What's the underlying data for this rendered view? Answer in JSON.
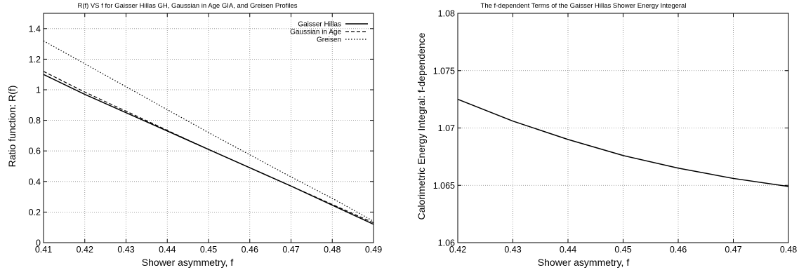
{
  "chart_data": [
    {
      "type": "line",
      "title": "R(f) VS f for Gaisser Hillas GH, Gaussian in Age GIA, and Greisen Profiles",
      "xlabel": "Shower asymmetry, f",
      "ylabel": "Ratio function: R(f)",
      "xlim": [
        0.41,
        0.49
      ],
      "ylim": [
        0,
        1.5
      ],
      "xticks": [
        "0.41",
        "0.42",
        "0.43",
        "0.44",
        "0.45",
        "0.46",
        "0.47",
        "0.48",
        "0.49"
      ],
      "yticks": [
        "0",
        "0.2",
        "0.4",
        "0.6",
        "0.8",
        "1",
        "1.2",
        "1.4"
      ],
      "grid": true,
      "legend": "top-right",
      "series": [
        {
          "name": "Gaisser Hillas",
          "style": "solid",
          "x": [
            0.41,
            0.42,
            0.43,
            0.44,
            0.45,
            0.46,
            0.47,
            0.48,
            0.49
          ],
          "y": [
            1.1,
            0.97,
            0.85,
            0.73,
            0.61,
            0.49,
            0.37,
            0.245,
            0.12
          ]
        },
        {
          "name": "Gaussian in Age",
          "style": "dashed",
          "x": [
            0.41,
            0.42,
            0.43,
            0.44,
            0.45,
            0.46,
            0.47,
            0.48,
            0.49
          ],
          "y": [
            1.12,
            0.985,
            0.86,
            0.735,
            0.61,
            0.49,
            0.37,
            0.25,
            0.13
          ]
        },
        {
          "name": "Greisen",
          "style": "dotted",
          "x": [
            0.41,
            0.42,
            0.43,
            0.44,
            0.45,
            0.46,
            0.47,
            0.48,
            0.49
          ],
          "y": [
            1.32,
            1.17,
            1.02,
            0.87,
            0.72,
            0.575,
            0.43,
            0.29,
            0.14
          ]
        }
      ]
    },
    {
      "type": "line",
      "title": "The f-dependent Terms of the Gaisser Hillas Shower Energy Integeral",
      "xlabel": "Shower asymmetry, f",
      "ylabel": "Calorimetric Energy Integral: f-dependence",
      "xlim": [
        0.42,
        0.48
      ],
      "ylim": [
        1.06,
        1.08
      ],
      "xticks": [
        "0.42",
        "0.43",
        "0.44",
        "0.45",
        "0.46",
        "0.47",
        "0.48"
      ],
      "yticks": [
        "1.06",
        "1.065",
        "1.07",
        "1.075",
        "1.08"
      ],
      "grid": true,
      "series": [
        {
          "style": "solid",
          "x": [
            0.42,
            0.43,
            0.44,
            0.45,
            0.46,
            0.47,
            0.48
          ],
          "y": [
            1.0725,
            1.0706,
            1.069,
            1.0676,
            1.0665,
            1.0656,
            1.0649
          ]
        }
      ]
    }
  ]
}
